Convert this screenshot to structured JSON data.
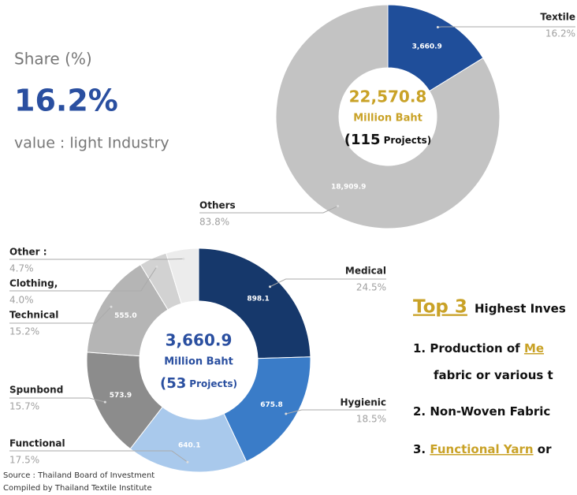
{
  "share_panel": {
    "heading": "Share (%)",
    "value": "16.2%",
    "caption": "value : light Industry"
  },
  "chart_data": [
    {
      "type": "donut",
      "categories": [
        "Textile",
        "Others"
      ],
      "values": [
        3660.9,
        18909.9
      ],
      "value_labels": [
        "3,660.9",
        "18,909.9"
      ],
      "shares": [
        16.2,
        83.8
      ],
      "share_labels": [
        "16.2%",
        "83.8%"
      ],
      "colors": [
        "#1f4e9a",
        "#c3c3c3"
      ],
      "center_value": "22,570.8",
      "center_unit": "Million Baht",
      "center_open": "(",
      "center_projects": "115",
      "center_close": "Projects)"
    },
    {
      "type": "donut",
      "categories": [
        "Medical",
        "Hygienic",
        "Functional",
        "Spunbond",
        "Technical",
        "Clothing,",
        "Other :"
      ],
      "values": [
        898.1,
        675.8,
        640.1,
        573.9,
        555.0,
        146.4,
        172.1
      ],
      "value_labels": [
        "898.1",
        "675.8",
        "640.1",
        "573.9",
        "555.0",
        null,
        null
      ],
      "shares": [
        24.5,
        18.5,
        17.5,
        15.7,
        15.2,
        4.0,
        4.7
      ],
      "share_labels": [
        "24.5%",
        "18.5%",
        "17.5%",
        "15.7%",
        "15.2%",
        "4.0%",
        "4.7%"
      ],
      "colors": [
        "#16386b",
        "#3a7cc8",
        "#a9c9ec",
        "#8c8c8c",
        "#b5b5b5",
        "#d2d2d2",
        "#ececec"
      ],
      "center_value": "3,660.9",
      "center_unit": "Million Baht",
      "center_open": "(",
      "center_projects": "53",
      "center_close": "Projects)"
    }
  ],
  "top3": {
    "highlight": "Top 3",
    "heading": "Highest Inves",
    "items": [
      [
        "1. Production of ",
        "Me"
      ],
      [
        "fabric  or various t"
      ],
      [
        "2. Non-Woven Fabric"
      ],
      [
        "3. ",
        "Functional Yarn",
        " or"
      ]
    ]
  },
  "source": [
    "Source : Thailand Board of Investment",
    "Compiled by Thailand Textile Institute"
  ]
}
